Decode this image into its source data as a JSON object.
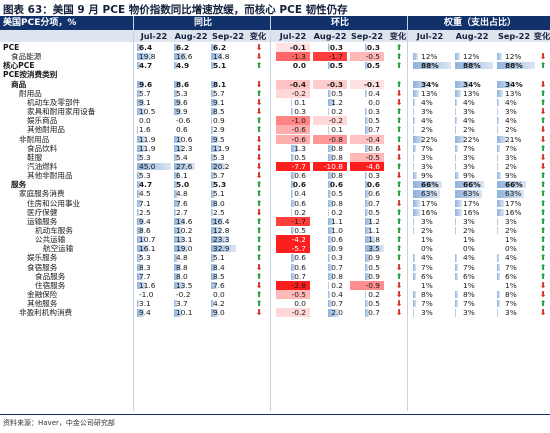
{
  "title": "图表 63：美国 9 月 PCE 物价指数同比增速放缓，而核心 PCE 韧性仍存",
  "header": {
    "category": "美国PCE分项，%",
    "groups": [
      "同比",
      "环比",
      "权重（支出占比）"
    ],
    "months": [
      "Jul-22",
      "Aug-22",
      "Sep-22"
    ],
    "change": "变化"
  },
  "colors": {
    "up": "#2e9e44",
    "down": "#d6342b",
    "header": "#11316b",
    "heat": "#e8202a",
    "bar": "#8fb2dc"
  },
  "rows": [
    {
      "label": "PCE",
      "indent": 0,
      "bold": true,
      "yoy": [
        "6.4",
        "6.2",
        "6.2"
      ],
      "yoy_n": [
        6.4,
        6.2,
        6.2
      ],
      "yoy_dir": "down",
      "mom": [
        "-0.1",
        "0.3",
        "0.3"
      ],
      "mom_n": [
        -0.1,
        0.3,
        0.3
      ],
      "mom_dir": "up",
      "w": [
        "",
        "",
        ""
      ],
      "w_n": [
        0,
        0,
        0
      ]
    },
    {
      "label": "食品能源",
      "indent": 1,
      "bold": false,
      "yoy": [
        "19.8",
        "16.6",
        "14.8"
      ],
      "yoy_n": [
        19.8,
        16.6,
        14.8
      ],
      "yoy_dir": "down",
      "mom": [
        "-1.3",
        "-1.7",
        "-0.5"
      ],
      "mom_n": [
        -1.3,
        -1.7,
        -0.5
      ],
      "mom_dir": "up",
      "w": [
        "12%",
        "12%",
        "12%"
      ],
      "w_n": [
        12,
        12,
        12
      ],
      "w_dir": "down"
    },
    {
      "label": "核心PCE",
      "indent": 0,
      "bold": true,
      "yoy": [
        "4.7",
        "4.9",
        "5.1"
      ],
      "yoy_n": [
        4.7,
        4.9,
        5.1
      ],
      "yoy_dir": "up",
      "mom": [
        "0.0",
        "0.5",
        "0.5"
      ],
      "mom_n": [
        0.0,
        0.5,
        0.5
      ],
      "mom_dir": "up",
      "w": [
        "88%",
        "88%",
        "88%"
      ],
      "w_n": [
        88,
        88,
        88
      ],
      "w_dir": "up"
    },
    {
      "label": "PCE按消费类别",
      "indent": 0,
      "bold": true,
      "section": true
    },
    {
      "label": "商品",
      "indent": 1,
      "bold": true,
      "yoy": [
        "9.6",
        "8.6",
        "8.1"
      ],
      "yoy_n": [
        9.6,
        8.6,
        8.1
      ],
      "yoy_dir": "down",
      "mom": [
        "-0.4",
        "-0.3",
        "-0.1"
      ],
      "mom_n": [
        -0.4,
        -0.3,
        -0.1
      ],
      "mom_dir": "up",
      "w": [
        "34%",
        "34%",
        "34%"
      ],
      "w_n": [
        34,
        34,
        34
      ],
      "w_dir": "down"
    },
    {
      "label": "耐用品",
      "indent": 2,
      "bold": false,
      "yoy": [
        "5.7",
        "5.3",
        "5.7"
      ],
      "yoy_n": [
        5.7,
        5.3,
        5.7
      ],
      "yoy_dir": "up",
      "mom": [
        "-0.2",
        "0.5",
        "0.4"
      ],
      "mom_n": [
        -0.2,
        0.5,
        0.4
      ],
      "mom_dir": "down",
      "w": [
        "13%",
        "13%",
        "13%"
      ],
      "w_n": [
        13,
        13,
        13
      ],
      "w_dir": "up"
    },
    {
      "label": "机动车及零部件",
      "indent": 3,
      "bold": false,
      "yoy": [
        "9.1",
        "9.6",
        "9.1"
      ],
      "yoy_n": [
        9.1,
        9.6,
        9.1
      ],
      "yoy_dir": "down",
      "mom": [
        "0.1",
        "1.2",
        "0.0"
      ],
      "mom_n": [
        0.1,
        1.2,
        0.0
      ],
      "mom_dir": "down",
      "w": [
        "4%",
        "4%",
        "4%"
      ],
      "w_n": [
        4,
        4,
        4
      ],
      "w_dir": "up"
    },
    {
      "label": "家具和耐用家用设备",
      "indent": 3,
      "bold": false,
      "yoy": [
        "10.5",
        "9.9",
        "8.5"
      ],
      "yoy_n": [
        10.5,
        9.9,
        8.5
      ],
      "yoy_dir": "down",
      "mom": [
        "0.3",
        "0.2",
        "0.3"
      ],
      "mom_n": [
        0.3,
        0.2,
        0.3
      ],
      "mom_dir": "up",
      "w": [
        "3%",
        "3%",
        "3%"
      ],
      "w_n": [
        3,
        3,
        3
      ],
      "w_dir": "down"
    },
    {
      "label": "娱乐商品",
      "indent": 3,
      "bold": false,
      "yoy": [
        "0.0",
        "-0.6",
        "0.9"
      ],
      "yoy_n": [
        0.0,
        -0.6,
        0.9
      ],
      "yoy_dir": "up",
      "mom": [
        "-1.0",
        "-0.2",
        "0.5"
      ],
      "mom_n": [
        -1.0,
        -0.2,
        0.5
      ],
      "mom_dir": "up",
      "w": [
        "4%",
        "4%",
        "4%"
      ],
      "w_n": [
        4,
        4,
        4
      ],
      "w_dir": "up"
    },
    {
      "label": "其他耐用品",
      "indent": 3,
      "bold": false,
      "yoy": [
        "1.6",
        "0.6",
        "2.9"
      ],
      "yoy_n": [
        1.6,
        0.6,
        2.9
      ],
      "yoy_dir": "up",
      "mom": [
        "-0.6",
        "0.1",
        "0.7"
      ],
      "mom_n": [
        -0.6,
        0.1,
        0.7
      ],
      "mom_dir": "up",
      "w": [
        "2%",
        "2%",
        "2%"
      ],
      "w_n": [
        2,
        2,
        2
      ],
      "w_dir": "down"
    },
    {
      "label": "非耐用品",
      "indent": 2,
      "bold": false,
      "yoy": [
        "11.9",
        "10.6",
        "9.5"
      ],
      "yoy_n": [
        11.9,
        10.6,
        9.5
      ],
      "yoy_dir": "down",
      "mom": [
        "-0.6",
        "-0.8",
        "-0.4"
      ],
      "mom_n": [
        -0.6,
        -0.8,
        -0.4
      ],
      "mom_dir": "up",
      "w": [
        "22%",
        "22%",
        "21%"
      ],
      "w_n": [
        22,
        22,
        21
      ],
      "w_dir": "down"
    },
    {
      "label": "食品饮料",
      "indent": 3,
      "bold": false,
      "yoy": [
        "11.9",
        "12.3",
        "11.9"
      ],
      "yoy_n": [
        11.9,
        12.3,
        11.9
      ],
      "yoy_dir": "down",
      "mom": [
        "1.3",
        "0.8",
        "0.6"
      ],
      "mom_n": [
        1.3,
        0.8,
        0.6
      ],
      "mom_dir": "down",
      "w": [
        "7%",
        "7%",
        "7%"
      ],
      "w_n": [
        7,
        7,
        7
      ],
      "w_dir": "up"
    },
    {
      "label": "鞋服",
      "indent": 3,
      "bold": false,
      "yoy": [
        "5.3",
        "5.4",
        "5.3"
      ],
      "yoy_n": [
        5.3,
        5.4,
        5.3
      ],
      "yoy_dir": "down",
      "mom": [
        "0.5",
        "0.8",
        "-0.5"
      ],
      "mom_n": [
        0.5,
        0.8,
        -0.5
      ],
      "mom_dir": "down",
      "w": [
        "3%",
        "3%",
        "3%"
      ],
      "w_n": [
        3,
        3,
        3
      ],
      "w_dir": "down"
    },
    {
      "label": "汽油燃料",
      "indent": 3,
      "bold": false,
      "yoy": [
        "45.0",
        "27.6",
        "20.2"
      ],
      "yoy_n": [
        45.0,
        27.6,
        20.2
      ],
      "yoy_dir": "down",
      "mom": [
        "-7.7",
        "-10.8",
        "-4.6"
      ],
      "mom_n": [
        -7.7,
        -10.8,
        -4.6
      ],
      "mom_dir": "up",
      "w": [
        "3%",
        "3%",
        "2%"
      ],
      "w_n": [
        3,
        3,
        2
      ],
      "w_dir": "down"
    },
    {
      "label": "其他非耐用品",
      "indent": 3,
      "bold": false,
      "yoy": [
        "5.3",
        "6.1",
        "5.7"
      ],
      "yoy_n": [
        5.3,
        6.1,
        5.7
      ],
      "yoy_dir": "down",
      "mom": [
        "0.6",
        "0.8",
        "0.3"
      ],
      "mom_n": [
        0.6,
        0.8,
        0.3
      ],
      "mom_dir": "down",
      "w": [
        "9%",
        "9%",
        "9%"
      ],
      "w_n": [
        9,
        9,
        9
      ],
      "w_dir": "up"
    },
    {
      "label": "服务",
      "indent": 1,
      "bold": true,
      "yoy": [
        "4.7",
        "5.0",
        "5.3"
      ],
      "yoy_n": [
        4.7,
        5.0,
        5.3
      ],
      "yoy_dir": "up",
      "mom": [
        "0.6",
        "0.6",
        "0.6"
      ],
      "mom_n": [
        0.6,
        0.6,
        0.6
      ],
      "mom_dir": "up",
      "w": [
        "66%",
        "66%",
        "66%"
      ],
      "w_n": [
        66,
        66,
        66
      ],
      "w_dir": "up"
    },
    {
      "label": "家庭服务消费",
      "indent": 2,
      "bold": false,
      "yoy": [
        "4.5",
        "4.8",
        "5.1"
      ],
      "yoy_n": [
        4.5,
        4.8,
        5.1
      ],
      "yoy_dir": "up",
      "mom": [
        "0.4",
        "0.5",
        "0.6"
      ],
      "mom_n": [
        0.4,
        0.5,
        0.6
      ],
      "mom_dir": "up",
      "w": [
        "63%",
        "63%",
        "63%"
      ],
      "w_n": [
        63,
        63,
        63
      ],
      "w_dir": "up"
    },
    {
      "label": "住房和公用事业",
      "indent": 3,
      "bold": false,
      "yoy": [
        "7.1",
        "7.6",
        "8.0"
      ],
      "yoy_n": [
        7.1,
        7.6,
        8.0
      ],
      "yoy_dir": "up",
      "mom": [
        "0.6",
        "0.8",
        "0.7"
      ],
      "mom_n": [
        0.6,
        0.8,
        0.7
      ],
      "mom_dir": "down",
      "w": [
        "17%",
        "17%",
        "17%"
      ],
      "w_n": [
        17,
        17,
        17
      ],
      "w_dir": "up"
    },
    {
      "label": "医疗保健",
      "indent": 3,
      "bold": false,
      "yoy": [
        "2.5",
        "2.7",
        "2.5"
      ],
      "yoy_n": [
        2.5,
        2.7,
        2.5
      ],
      "yoy_dir": "down",
      "mom": [
        "0.2",
        "0.2",
        "0.5"
      ],
      "mom_n": [
        0.2,
        0.2,
        0.5
      ],
      "mom_dir": "up",
      "w": [
        "16%",
        "16%",
        "16%"
      ],
      "w_n": [
        16,
        16,
        16
      ],
      "w_dir": "up"
    },
    {
      "label": "运输服务",
      "indent": 3,
      "bold": false,
      "yoy": [
        "9.4",
        "14.6",
        "16.4"
      ],
      "yoy_n": [
        9.4,
        14.6,
        16.4
      ],
      "yoy_dir": "up",
      "mom": [
        "-1.7",
        "1.1",
        "1.2"
      ],
      "mom_n": [
        -1.7,
        1.1,
        1.2
      ],
      "mom_dir": "up",
      "w": [
        "3%",
        "3%",
        "3%"
      ],
      "w_n": [
        3,
        3,
        3
      ],
      "w_dir": "up"
    },
    {
      "label": "机动车服务",
      "indent": 4,
      "bold": false,
      "yoy": [
        "8.6",
        "10.2",
        "12.8"
      ],
      "yoy_n": [
        8.6,
        10.2,
        12.8
      ],
      "yoy_dir": "up",
      "mom": [
        "0.5",
        "1.0",
        "1.1"
      ],
      "mom_n": [
        0.5,
        1.0,
        1.1
      ],
      "mom_dir": "up",
      "w": [
        "2%",
        "2%",
        "2%"
      ],
      "w_n": [
        2,
        2,
        2
      ],
      "w_dir": "up"
    },
    {
      "label": "公共运输",
      "indent": 4,
      "bold": false,
      "yoy": [
        "10.7",
        "13.1",
        "23.3"
      ],
      "yoy_n": [
        10.7,
        13.1,
        23.3
      ],
      "yoy_dir": "up",
      "mom": [
        "-4.2",
        "0.6",
        "1.8"
      ],
      "mom_n": [
        -4.2,
        0.6,
        1.8
      ],
      "mom_dir": "up",
      "w": [
        "1%",
        "1%",
        "1%"
      ],
      "w_n": [
        1,
        1,
        1
      ],
      "w_dir": "up"
    },
    {
      "label": "航空运输",
      "indent": 5,
      "bold": false,
      "yoy": [
        "16.1",
        "19.0",
        "32.9"
      ],
      "yoy_n": [
        16.1,
        19.0,
        32.9
      ],
      "yoy_dir": "up",
      "mom": [
        "-5.7",
        "0.9",
        "3.5"
      ],
      "mom_n": [
        -5.7,
        0.9,
        3.5
      ],
      "mom_dir": "up",
      "w": [
        "0%",
        "0%",
        "0%"
      ],
      "w_n": [
        0,
        0,
        0
      ],
      "w_dir": "up"
    },
    {
      "label": "娱乐服务",
      "indent": 3,
      "bold": false,
      "yoy": [
        "5.3",
        "4.8",
        "5.1"
      ],
      "yoy_n": [
        5.3,
        4.8,
        5.1
      ],
      "yoy_dir": "up",
      "mom": [
        "0.6",
        "0.3",
        "0.9"
      ],
      "mom_n": [
        0.6,
        0.3,
        0.9
      ],
      "mom_dir": "up",
      "w": [
        "4%",
        "4%",
        "4%"
      ],
      "w_n": [
        4,
        4,
        4
      ],
      "w_dir": "up"
    },
    {
      "label": "食宿服务",
      "indent": 3,
      "bold": false,
      "yoy": [
        "8.3",
        "8.8",
        "8.4"
      ],
      "yoy_n": [
        8.3,
        8.8,
        8.4
      ],
      "yoy_dir": "down",
      "mom": [
        "0.6",
        "0.7",
        "0.5"
      ],
      "mom_n": [
        0.6,
        0.7,
        0.5
      ],
      "mom_dir": "down",
      "w": [
        "7%",
        "7%",
        "7%"
      ],
      "w_n": [
        7,
        7,
        7
      ],
      "w_dir": "up"
    },
    {
      "label": "食品服务",
      "indent": 4,
      "bold": false,
      "yoy": [
        "7.7",
        "8.0",
        "8.5"
      ],
      "yoy_n": [
        7.7,
        8.0,
        8.5
      ],
      "yoy_dir": "up",
      "mom": [
        "0.7",
        "0.8",
        "0.9"
      ],
      "mom_n": [
        0.7,
        0.8,
        0.9
      ],
      "mom_dir": "up",
      "w": [
        "6%",
        "6%",
        "6%"
      ],
      "w_n": [
        6,
        6,
        6
      ],
      "w_dir": "up"
    },
    {
      "label": "住宿服务",
      "indent": 4,
      "bold": false,
      "yoy": [
        "11.6",
        "13.5",
        "7.6"
      ],
      "yoy_n": [
        11.6,
        13.5,
        7.6
      ],
      "yoy_dir": "down",
      "mom": [
        "-2.8",
        "0.2",
        "-0.9"
      ],
      "mom_n": [
        -2.8,
        0.2,
        -0.9
      ],
      "mom_dir": "down",
      "w": [
        "1%",
        "1%",
        "1%"
      ],
      "w_n": [
        1,
        1,
        1
      ],
      "w_dir": "down"
    },
    {
      "label": "金融保险",
      "indent": 3,
      "bold": false,
      "yoy": [
        "-1.0",
        "-0.2",
        "0.0"
      ],
      "yoy_n": [
        -1.0,
        -0.2,
        0.0
      ],
      "yoy_dir": "up",
      "mom": [
        "-0.5",
        "0.4",
        "0.2"
      ],
      "mom_n": [
        -0.5,
        0.4,
        0.2
      ],
      "mom_dir": "down",
      "w": [
        "8%",
        "8%",
        "8%"
      ],
      "w_n": [
        8,
        8,
        8
      ],
      "w_dir": "down"
    },
    {
      "label": "其他服务",
      "indent": 3,
      "bold": false,
      "yoy": [
        "3.1",
        "3.7",
        "4.2"
      ],
      "yoy_n": [
        3.1,
        3.7,
        4.2
      ],
      "yoy_dir": "up",
      "mom": [
        "0.0",
        "0.7",
        "0.5"
      ],
      "mom_n": [
        0.0,
        0.7,
        0.5
      ],
      "mom_dir": "down",
      "w": [
        "7%",
        "7%",
        "7%"
      ],
      "w_n": [
        7,
        7,
        7
      ],
      "w_dir": "up"
    },
    {
      "label": "非盈利机构消费",
      "indent": 2,
      "bold": false,
      "yoy": [
        "9.4",
        "10.1",
        "9.0"
      ],
      "yoy_n": [
        9.4,
        10.1,
        9.0
      ],
      "yoy_dir": "down",
      "mom": [
        "-0.2",
        "2.0",
        "0.7"
      ],
      "mom_n": [
        -0.2,
        2.0,
        0.7
      ],
      "mom_dir": "down",
      "w": [
        "3%",
        "3%",
        "3%"
      ],
      "w_n": [
        3,
        3,
        3
      ],
      "w_dir": "down"
    }
  ],
  "footer": "资料来源：Haver，中金公司研究部"
}
